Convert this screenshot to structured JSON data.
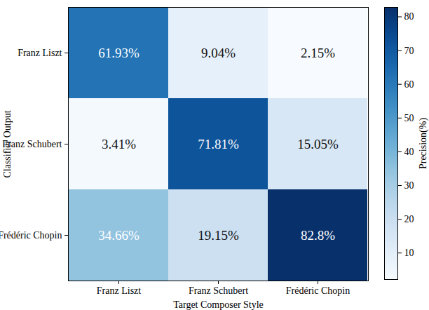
{
  "chart_data": {
    "type": "heatmap",
    "xlabel": "Target Composer Style",
    "ylabel": "Classifier Output",
    "categories": [
      "Franz Liszt",
      "Franz Schubert",
      "Frédéric Chopin"
    ],
    "y_categories": [
      "Franz Liszt",
      "Franz Schubert",
      "Frédéric Chopin"
    ],
    "cells": [
      [
        61.93,
        9.04,
        2.15
      ],
      [
        3.41,
        71.81,
        15.05
      ],
      [
        34.66,
        19.15,
        82.8
      ]
    ],
    "value_labels": [
      [
        "61.93%",
        "9.04%",
        "2.15%"
      ],
      [
        "3.41%",
        "71.81%",
        "15.05%"
      ],
      [
        "34.66%",
        "19.15%",
        "82.8%"
      ]
    ],
    "data_labels": true,
    "colorbar": {
      "label": "Precision(%)",
      "range": [
        2.15,
        82.8
      ],
      "ticks": [
        10,
        20,
        30,
        40,
        50,
        60,
        70,
        80
      ]
    }
  }
}
